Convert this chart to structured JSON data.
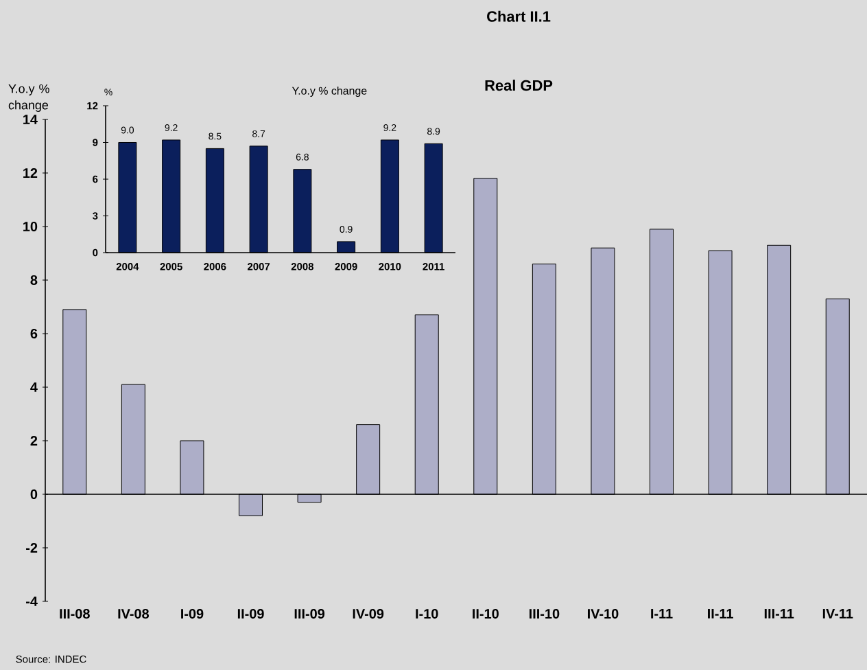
{
  "chart_data": [
    {
      "type": "bar",
      "title": "Chart II.1",
      "subtitle": "Real GDP",
      "ylabel": "Y.o.y % change",
      "categories": [
        "III-08",
        "IV-08",
        "I-09",
        "II-09",
        "III-09",
        "IV-09",
        "I-10",
        "II-10",
        "III-10",
        "IV-10",
        "I-11",
        "II-11",
        "III-11",
        "IV-11"
      ],
      "values": [
        6.9,
        4.1,
        2.0,
        -0.8,
        -0.3,
        2.6,
        6.7,
        11.8,
        8.6,
        9.2,
        9.9,
        9.1,
        9.3,
        7.3
      ],
      "color": "#adaec8",
      "ylim": [
        -4,
        14
      ],
      "yticks": [
        -4,
        -2,
        0,
        2,
        4,
        6,
        8,
        10,
        12,
        14
      ],
      "annotations": [
        "Source: INDEC"
      ]
    },
    {
      "type": "bar",
      "title": "Y.o.y % change",
      "ylabel": "%",
      "categories": [
        "2004",
        "2005",
        "2006",
        "2007",
        "2008",
        "2009",
        "2010",
        "2011"
      ],
      "values": [
        9.0,
        9.2,
        8.5,
        8.7,
        6.8,
        0.9,
        9.2,
        8.9
      ],
      "color": "#0b1f5c",
      "ylim": [
        0,
        12
      ],
      "yticks": [
        0,
        3,
        6,
        9,
        12
      ],
      "value_labels": [
        "9.0",
        "9.2",
        "8.5",
        "8.7",
        "6.8",
        "0.9",
        "9.2",
        "8.9"
      ]
    }
  ]
}
